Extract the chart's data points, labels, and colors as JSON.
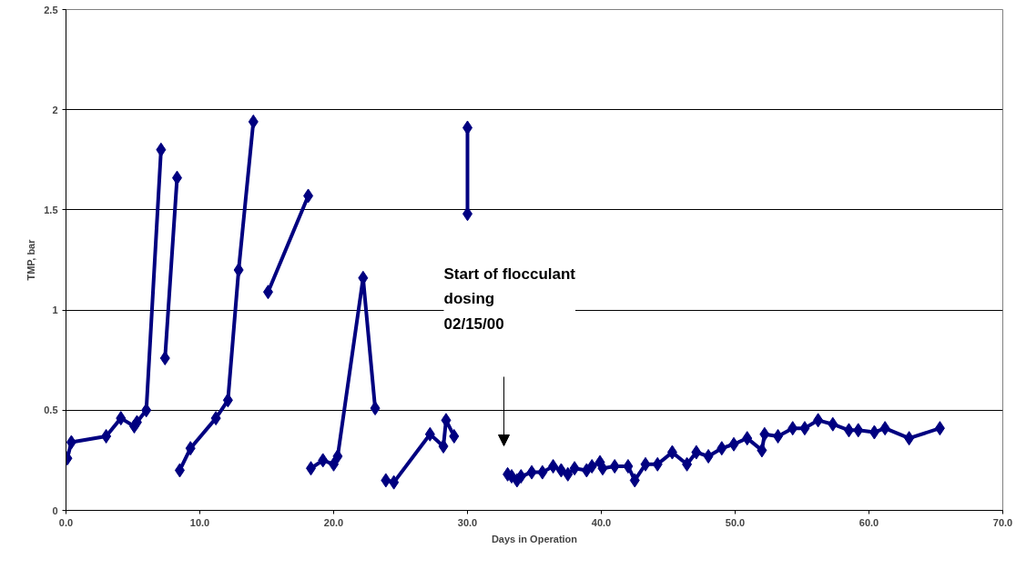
{
  "chart_data": {
    "type": "line",
    "xlabel": "Days in Operation",
    "ylabel": "TMP, bar",
    "x": [
      0.1,
      0.4,
      3.0,
      4.1,
      5.1,
      5.3,
      6.0,
      7.1,
      null,
      7.4,
      8.3,
      null,
      8.5,
      9.3,
      11.2,
      12.1,
      12.9,
      14.0,
      null,
      15.1,
      18.1,
      null,
      18.3,
      19.2,
      20.0,
      20.3,
      22.2,
      23.1,
      null,
      23.9,
      24.5,
      27.2,
      28.2,
      28.4,
      29.0,
      null,
      30.0,
      30.0,
      null,
      33.0,
      33.3,
      33.7,
      34.0,
      34.8,
      35.6,
      36.4,
      37.0,
      37.5,
      38.0,
      38.9,
      39.3,
      39.9,
      40.1,
      41.0,
      42.0,
      42.5,
      43.3,
      44.2,
      45.3,
      46.4,
      47.1,
      48.0,
      49.0,
      49.9,
      50.9,
      52.0,
      52.2,
      53.2,
      54.3,
      55.2,
      56.2,
      57.3,
      58.5,
      59.2,
      60.4,
      61.2,
      63.0,
      65.3
    ],
    "series": [
      {
        "color": "#000080",
        "values": [
          0.26,
          0.34,
          0.37,
          0.46,
          0.42,
          0.44,
          0.5,
          1.8,
          null,
          0.76,
          1.66,
          null,
          0.2,
          0.31,
          0.46,
          0.55,
          1.2,
          1.94,
          null,
          1.09,
          1.57,
          null,
          0.21,
          0.25,
          0.23,
          0.27,
          1.16,
          0.51,
          null,
          0.15,
          0.14,
          0.38,
          0.32,
          0.45,
          0.37,
          null,
          1.91,
          1.48,
          null,
          0.18,
          0.17,
          0.15,
          0.17,
          0.19,
          0.19,
          0.22,
          0.2,
          0.18,
          0.21,
          0.2,
          0.22,
          0.24,
          0.21,
          0.22,
          0.22,
          0.15,
          0.23,
          0.23,
          0.29,
          0.23,
          0.29,
          0.27,
          0.31,
          0.33,
          0.36,
          0.3,
          0.38,
          0.37,
          0.41,
          0.41,
          0.45,
          0.43,
          0.4,
          0.4,
          0.39,
          0.41,
          0.36,
          0.41
        ]
      }
    ],
    "xlim": [
      0,
      70
    ],
    "ylim": [
      0,
      2.5
    ],
    "xticks": [
      {
        "value": 0,
        "label": "0.0"
      },
      {
        "value": 10,
        "label": "10.0"
      },
      {
        "value": 20,
        "label": "20.0"
      },
      {
        "value": 30,
        "label": "30.0"
      },
      {
        "value": 40,
        "label": "40.0"
      },
      {
        "value": 50,
        "label": "50.0"
      },
      {
        "value": 60,
        "label": "60.0"
      },
      {
        "value": 70,
        "label": "70.0"
      }
    ],
    "yticks": [
      0,
      0.5,
      1,
      1.5,
      2,
      2.5
    ],
    "grid": "y",
    "marker": "diamond",
    "line_style": "solid",
    "annotations": [
      "Start of flocculant\ndosing\n02/15/00"
    ]
  }
}
